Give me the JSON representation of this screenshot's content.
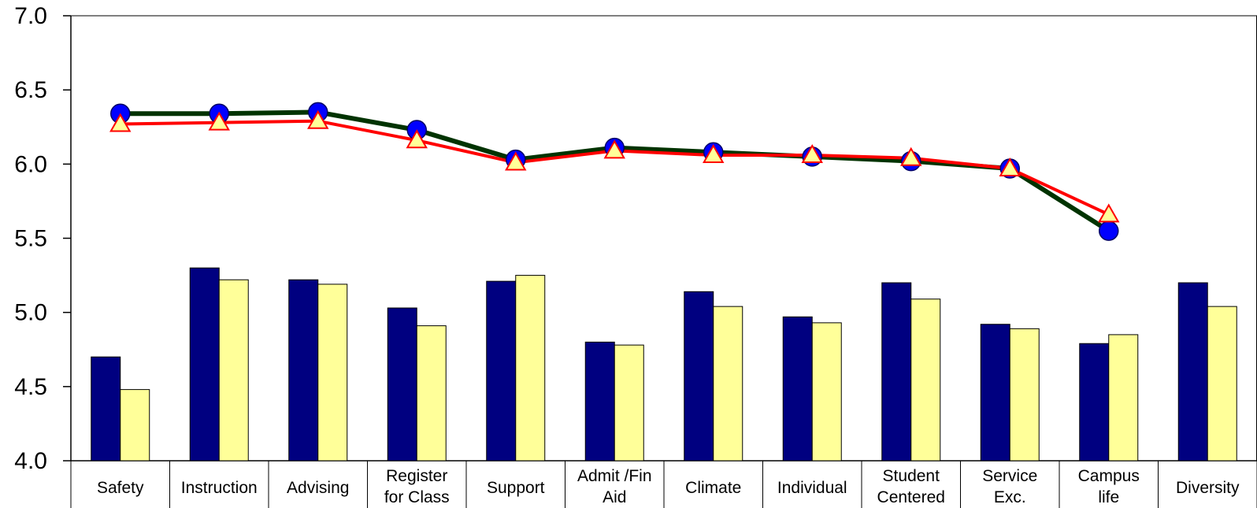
{
  "chart_data": {
    "type": "bar",
    "categories": [
      [
        "Safety"
      ],
      [
        "Instruction"
      ],
      [
        "Advising"
      ],
      [
        "Register",
        "for Class"
      ],
      [
        "Support"
      ],
      [
        "Admit /Fin",
        "Aid"
      ],
      [
        "Climate"
      ],
      [
        "Individual"
      ],
      [
        "Student",
        "Centered"
      ],
      [
        "Service",
        "Exc."
      ],
      [
        "Campus",
        "life"
      ],
      [
        "Diversity"
      ]
    ],
    "ylim": [
      4.0,
      7.0
    ],
    "yticks": [
      "4.0",
      "4.5",
      "5.0",
      "5.5",
      "6.0",
      "6.5",
      "7.0"
    ],
    "grid": false,
    "bar_series": [
      {
        "color": "#000080",
        "values": [
          4.7,
          5.3,
          5.22,
          5.03,
          5.21,
          4.8,
          5.14,
          4.97,
          5.2,
          4.92,
          4.79,
          5.2
        ]
      },
      {
        "color": "#FFFF99",
        "values": [
          4.48,
          5.22,
          5.19,
          4.91,
          5.25,
          4.78,
          5.04,
          4.93,
          5.09,
          4.89,
          4.85,
          5.04
        ]
      }
    ],
    "line_series": [
      {
        "line_color": "#003300",
        "marker": "circle",
        "marker_color": "#0000FF",
        "values": [
          6.34,
          6.34,
          6.35,
          6.23,
          6.03,
          6.11,
          6.08,
          6.05,
          6.02,
          5.97,
          5.55
        ]
      },
      {
        "line_color": "#FF0000",
        "marker": "triangle",
        "marker_color": "#FFFF99",
        "values": [
          6.27,
          6.28,
          6.29,
          6.16,
          6.01,
          6.09,
          6.06,
          6.06,
          6.04,
          5.97,
          5.66
        ]
      }
    ]
  }
}
